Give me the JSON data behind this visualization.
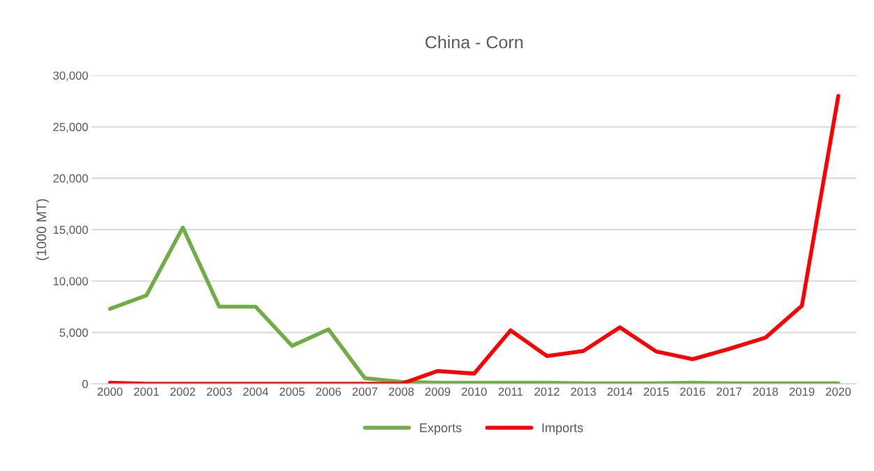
{
  "chart_data": {
    "type": "line",
    "title": "China - Corn",
    "ylabel": "(1000 MT)",
    "categories": [
      "2000",
      "2001",
      "2002",
      "2003",
      "2004",
      "2005",
      "2006",
      "2007",
      "2008",
      "2009",
      "2010",
      "2011",
      "2012",
      "2013",
      "2014",
      "2015",
      "2016",
      "2017",
      "2018",
      "2019",
      "2020"
    ],
    "series": [
      {
        "name": "Exports",
        "color": "#70ad47",
        "values": [
          7300,
          8600,
          15200,
          7500,
          7500,
          3700,
          5300,
          550,
          200,
          100,
          100,
          100,
          100,
          50,
          50,
          50,
          100,
          50,
          50,
          50,
          50
        ]
      },
      {
        "name": "Imports",
        "color": "#ff0000",
        "values": [
          100,
          0,
          0,
          0,
          0,
          0,
          0,
          0,
          0,
          1250,
          1000,
          5200,
          2700,
          3200,
          5500,
          3150,
          2400,
          3400,
          4500,
          7600,
          28000
        ]
      }
    ],
    "ylim": [
      0,
      30000
    ],
    "yticks": [
      {
        "value": 0,
        "label": "0"
      },
      {
        "value": 5000,
        "label": "5,000"
      },
      {
        "value": 10000,
        "label": "10,000"
      },
      {
        "value": 15000,
        "label": "15,000"
      },
      {
        "value": 20000,
        "label": "20,000"
      },
      {
        "value": 25000,
        "label": "25,000"
      },
      {
        "value": 30000,
        "label": "30,000"
      }
    ],
    "grid": "y",
    "legend": "bottom",
    "marker": "none",
    "line_style": "solid"
  }
}
